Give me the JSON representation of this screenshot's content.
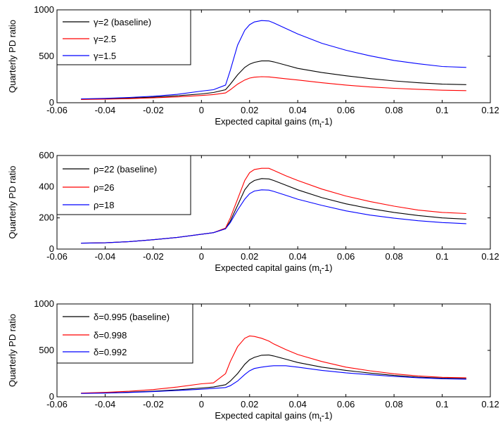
{
  "chart_data": [
    {
      "type": "line",
      "xlabel": "Expected capital gains (m",
      "xlabel_sub": "t",
      "xlabel_tail": "-1)",
      "ylabel": "Quarterly PD ratio",
      "xlim": [
        -0.06,
        0.12
      ],
      "ylim": [
        0,
        1000
      ],
      "xticks": [
        -0.06,
        -0.04,
        -0.02,
        0,
        0.02,
        0.04,
        0.06,
        0.08,
        0.1,
        0.12
      ],
      "xtick_labels": [
        "-0.06",
        "-0.04",
        "-0.02",
        "0",
        "0.02",
        "0.04",
        "0.06",
        "0.08",
        "0.1",
        "0.12"
      ],
      "yticks": [
        0,
        500,
        1000
      ],
      "ytick_labels": [
        "0",
        "500",
        "1000"
      ],
      "grid": false,
      "legend_position": "top-left",
      "x": [
        -0.05,
        -0.04,
        -0.03,
        -0.02,
        -0.01,
        0.0,
        0.005,
        0.01,
        0.012,
        0.015,
        0.018,
        0.02,
        0.022,
        0.025,
        0.028,
        0.03,
        0.035,
        0.04,
        0.05,
        0.06,
        0.07,
        0.08,
        0.09,
        0.1,
        0.11
      ],
      "series": [
        {
          "name": "γ=2 (baseline)",
          "color": "#000000",
          "values": [
            38,
            42,
            50,
            60,
            75,
            95,
            110,
            140,
            200,
            300,
            380,
            415,
            435,
            450,
            450,
            440,
            405,
            370,
            325,
            290,
            260,
            235,
            215,
            200,
            195
          ]
        },
        {
          "name": "γ=2.5",
          "color": "#ff0000",
          "values": [
            35,
            38,
            44,
            52,
            63,
            78,
            88,
            105,
            140,
            200,
            245,
            265,
            275,
            280,
            278,
            272,
            258,
            245,
            215,
            190,
            170,
            155,
            145,
            135,
            130
          ]
        },
        {
          "name": "γ=1.5",
          "color": "#0000ff",
          "values": [
            42,
            47,
            57,
            70,
            90,
            125,
            140,
            190,
            350,
            620,
            780,
            840,
            870,
            885,
            880,
            860,
            800,
            740,
            640,
            565,
            505,
            455,
            420,
            390,
            380
          ]
        }
      ]
    },
    {
      "type": "line",
      "xlabel": "Expected capital gains (m",
      "xlabel_sub": "t",
      "xlabel_tail": "-1)",
      "ylabel": "Quarterly PD ratio",
      "xlim": [
        -0.06,
        0.12
      ],
      "ylim": [
        0,
        600
      ],
      "xticks": [
        -0.06,
        -0.04,
        -0.02,
        0,
        0.02,
        0.04,
        0.06,
        0.08,
        0.1,
        0.12
      ],
      "xtick_labels": [
        "-0.06",
        "-0.04",
        "-0.02",
        "0",
        "0.02",
        "0.04",
        "0.06",
        "0.08",
        "0.1",
        "0.12"
      ],
      "yticks": [
        0,
        200,
        400,
        600
      ],
      "ytick_labels": [
        "0",
        "200",
        "400",
        "600"
      ],
      "grid": false,
      "legend_position": "top-left",
      "x": [
        -0.05,
        -0.04,
        -0.03,
        -0.02,
        -0.01,
        0.0,
        0.005,
        0.01,
        0.012,
        0.015,
        0.018,
        0.02,
        0.022,
        0.025,
        0.028,
        0.03,
        0.035,
        0.04,
        0.05,
        0.06,
        0.07,
        0.08,
        0.09,
        0.1,
        0.11
      ],
      "series": [
        {
          "name": "ρ=22 (baseline)",
          "color": "#000000",
          "values": [
            38,
            40,
            48,
            60,
            75,
            95,
            105,
            130,
            180,
            280,
            380,
            420,
            440,
            452,
            450,
            440,
            410,
            380,
            330,
            290,
            260,
            235,
            215,
            200,
            192
          ]
        },
        {
          "name": "ρ=26",
          "color": "#ff0000",
          "values": [
            38,
            40,
            48,
            60,
            75,
            95,
            105,
            135,
            200,
            320,
            440,
            490,
            510,
            518,
            518,
            505,
            470,
            440,
            385,
            340,
            305,
            275,
            250,
            235,
            228
          ]
        },
        {
          "name": "ρ=18",
          "color": "#0000ff",
          "values": [
            38,
            40,
            48,
            60,
            75,
            95,
            105,
            130,
            170,
            250,
            320,
            355,
            372,
            380,
            378,
            370,
            345,
            320,
            280,
            245,
            218,
            198,
            182,
            170,
            163
          ]
        }
      ]
    },
    {
      "type": "line",
      "xlabel": "Expected capital gains (m",
      "xlabel_sub": "t",
      "xlabel_tail": "-1)",
      "ylabel": "Quarterly PD ratio",
      "xlim": [
        -0.06,
        0.12
      ],
      "ylim": [
        0,
        1000
      ],
      "xticks": [
        -0.06,
        -0.04,
        -0.02,
        0,
        0.02,
        0.04,
        0.06,
        0.08,
        0.1,
        0.12
      ],
      "xtick_labels": [
        "-0.06",
        "-0.04",
        "-0.02",
        "0",
        "0.02",
        "0.04",
        "0.06",
        "0.08",
        "0.1",
        "0.12"
      ],
      "yticks": [
        0,
        500,
        1000
      ],
      "ytick_labels": [
        "0",
        "500",
        "1000"
      ],
      "grid": false,
      "legend_position": "top-left",
      "x": [
        -0.05,
        -0.04,
        -0.03,
        -0.02,
        -0.01,
        0.0,
        0.005,
        0.01,
        0.012,
        0.015,
        0.018,
        0.02,
        0.022,
        0.025,
        0.028,
        0.03,
        0.035,
        0.04,
        0.05,
        0.06,
        0.07,
        0.08,
        0.09,
        0.1,
        0.11
      ],
      "series": [
        {
          "name": "δ=0.995 (baseline)",
          "color": "#000000",
          "values": [
            38,
            42,
            50,
            60,
            75,
            95,
            105,
            130,
            170,
            250,
            350,
            400,
            425,
            448,
            450,
            440,
            405,
            370,
            320,
            285,
            255,
            230,
            212,
            200,
            195
          ]
        },
        {
          "name": "δ=0.998",
          "color": "#ff0000",
          "values": [
            40,
            48,
            60,
            78,
            105,
            140,
            150,
            250,
            380,
            540,
            630,
            655,
            650,
            630,
            600,
            570,
            510,
            455,
            380,
            320,
            280,
            248,
            225,
            210,
            205
          ]
        },
        {
          "name": "δ=0.992",
          "color": "#0000ff",
          "values": [
            36,
            40,
            47,
            56,
            68,
            82,
            90,
            100,
            120,
            170,
            240,
            280,
            305,
            320,
            330,
            335,
            335,
            320,
            285,
            258,
            238,
            220,
            205,
            195,
            190
          ]
        }
      ]
    }
  ]
}
